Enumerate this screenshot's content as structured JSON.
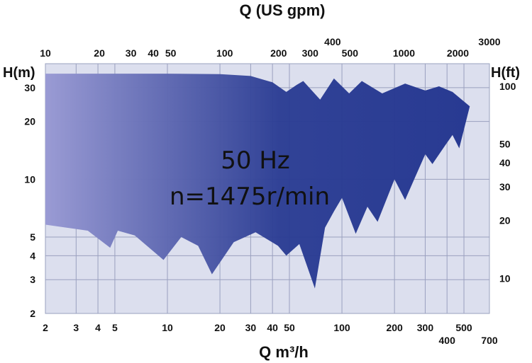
{
  "chart_data": {
    "type": "area",
    "title": "",
    "annotation": {
      "line1": "50 Hz",
      "line2": "n=1475r/min"
    },
    "x_bottom": {
      "label": "Q m³/h",
      "scale": "log",
      "range": [
        2,
        700
      ],
      "ticks": [
        {
          "value": 2,
          "label": "2"
        },
        {
          "value": 3,
          "label": "3"
        },
        {
          "value": 4,
          "label": "4"
        },
        {
          "value": 5,
          "label": "5"
        },
        {
          "value": 10,
          "label": "10"
        },
        {
          "value": 20,
          "label": "20"
        },
        {
          "value": 30,
          "label": "30"
        },
        {
          "value": 40,
          "label": "40"
        },
        {
          "value": 50,
          "label": "50"
        },
        {
          "value": 100,
          "label": "100"
        },
        {
          "value": 200,
          "label": "200"
        },
        {
          "value": 300,
          "label": "300"
        },
        {
          "value": 400,
          "label": "400"
        },
        {
          "value": 500,
          "label": "500"
        },
        {
          "value": 700,
          "label": "700"
        }
      ]
    },
    "x_top": {
      "label": "Q (US gpm)",
      "scale": "log",
      "range": [
        10,
        3000
      ],
      "ticks": [
        {
          "value": 10,
          "label": "10"
        },
        {
          "value": 20,
          "label": "20"
        },
        {
          "value": 30,
          "label": "30"
        },
        {
          "value": 40,
          "label": "40"
        },
        {
          "value": 50,
          "label": "50"
        },
        {
          "value": 100,
          "label": "100"
        },
        {
          "value": 200,
          "label": "200"
        },
        {
          "value": 300,
          "label": "300"
        },
        {
          "value": 400,
          "label": "400"
        },
        {
          "value": 500,
          "label": "500"
        },
        {
          "value": 1000,
          "label": "1000"
        },
        {
          "value": 2000,
          "label": "2000"
        },
        {
          "value": 3000,
          "label": "3000"
        }
      ]
    },
    "y_left": {
      "label": "H(m)",
      "scale": "log",
      "range": [
        2,
        40
      ],
      "ticks": [
        {
          "value": 2,
          "label": "2"
        },
        {
          "value": 3,
          "label": "3"
        },
        {
          "value": 4,
          "label": "4"
        },
        {
          "value": 5,
          "label": "5"
        },
        {
          "value": 10,
          "label": "10"
        },
        {
          "value": 20,
          "label": "20"
        },
        {
          "value": 30,
          "label": "30"
        }
      ]
    },
    "y_right": {
      "label": "H(ft)",
      "scale": "log",
      "ticks": [
        {
          "value": 10,
          "label": "10"
        },
        {
          "value": 20,
          "label": "20"
        },
        {
          "value": 30,
          "label": "30"
        },
        {
          "value": 40,
          "label": "40"
        },
        {
          "value": 50,
          "label": "50"
        },
        {
          "value": 100,
          "label": "100"
        }
      ]
    },
    "grid": true,
    "colors": {
      "plot_background": "#dcdfee",
      "grid": "#9aa0bf",
      "fill_light": "#9a9bd4",
      "fill_dark": "#283a92"
    },
    "coverage_boundary": [
      [
        2,
        35.5
      ],
      [
        10,
        35.5
      ],
      [
        20,
        35.3
      ],
      [
        30,
        34.5
      ],
      [
        40,
        32.0
      ],
      [
        48,
        28.5
      ],
      [
        55,
        31.0
      ],
      [
        60,
        32.5
      ],
      [
        75,
        26.0
      ],
      [
        90,
        33.5
      ],
      [
        110,
        28.0
      ],
      [
        130,
        32.5
      ],
      [
        170,
        28.0
      ],
      [
        230,
        31.5
      ],
      [
        300,
        29.0
      ],
      [
        360,
        30.5
      ],
      [
        430,
        28.5
      ],
      [
        540,
        24.0
      ],
      [
        470,
        14.5
      ],
      [
        430,
        17.0
      ],
      [
        390,
        15.0
      ],
      [
        330,
        12.0
      ],
      [
        300,
        13.5
      ],
      [
        230,
        7.8
      ],
      [
        200,
        10.0
      ],
      [
        160,
        6.0
      ],
      [
        140,
        7.2
      ],
      [
        120,
        5.2
      ],
      [
        100,
        8.0
      ],
      [
        90,
        6.8
      ],
      [
        80,
        5.6
      ],
      [
        70,
        2.7
      ],
      [
        57,
        4.6
      ],
      [
        48,
        4.0
      ],
      [
        43,
        4.5
      ],
      [
        32,
        5.3
      ],
      [
        24,
        4.7
      ],
      [
        18,
        3.2
      ],
      [
        15,
        4.5
      ],
      [
        12,
        5.0
      ],
      [
        9.5,
        3.8
      ],
      [
        6.5,
        5.1
      ],
      [
        5.2,
        5.4
      ],
      [
        4.7,
        4.4
      ],
      [
        3.5,
        5.4
      ],
      [
        2,
        5.8
      ]
    ]
  }
}
